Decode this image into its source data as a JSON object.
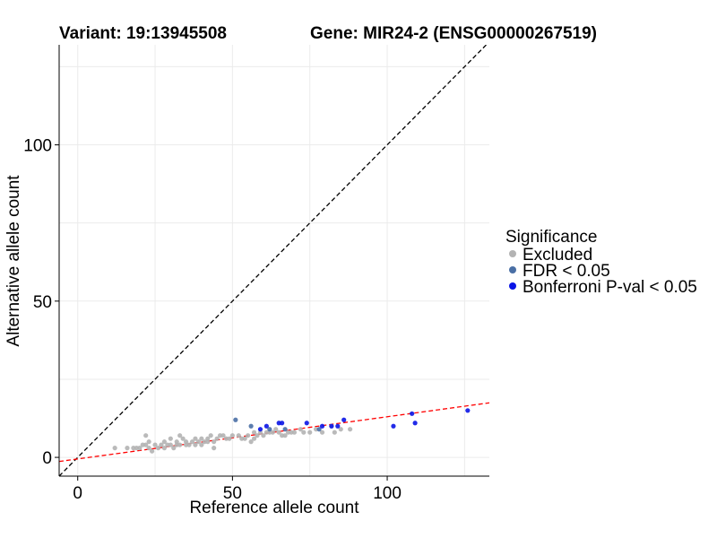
{
  "chart_data": {
    "type": "scatter",
    "title_left": "Variant: 19:13945508",
    "title_right": "Gene: MIR24-2 (ENSG00000267519)",
    "xlabel": "Reference allele count",
    "ylabel": "Alternative allele count",
    "xlim": [
      -6,
      133
    ],
    "ylim": [
      -6,
      132
    ],
    "xticks": [
      0,
      50,
      100
    ],
    "yticks": [
      0,
      50,
      100
    ],
    "grid": true,
    "legend": {
      "title": "Significance",
      "placement": "right",
      "entries": [
        {
          "label": "Excluded",
          "color": "#b3b3b3"
        },
        {
          "label": "FDR < 0.05",
          "color": "#4a6fa5"
        },
        {
          "label": "Bonferroni P-val < 0.05",
          "color": "#0a14e6"
        }
      ]
    },
    "reference_lines": [
      {
        "name": "y = x",
        "slope": 1,
        "intercept": 0,
        "color": "#000000",
        "style": "dashed"
      },
      {
        "name": "fit",
        "slope": 0.135,
        "intercept": -0.5,
        "color": "#ff0000",
        "style": "dashed"
      }
    ],
    "series": [
      {
        "name": "Excluded",
        "color": "#b3b3b3",
        "points": [
          [
            12,
            3
          ],
          [
            16,
            3
          ],
          [
            18,
            3
          ],
          [
            19,
            3
          ],
          [
            20,
            3
          ],
          [
            21,
            4
          ],
          [
            22,
            7
          ],
          [
            22,
            4
          ],
          [
            23,
            3
          ],
          [
            23,
            5
          ],
          [
            24,
            2
          ],
          [
            25,
            4
          ],
          [
            26,
            3
          ],
          [
            27,
            4
          ],
          [
            28,
            5
          ],
          [
            28,
            3
          ],
          [
            29,
            4
          ],
          [
            30,
            4
          ],
          [
            30,
            6
          ],
          [
            31,
            3
          ],
          [
            32,
            5
          ],
          [
            32,
            4
          ],
          [
            33,
            7
          ],
          [
            33,
            4
          ],
          [
            34,
            6
          ],
          [
            35,
            5
          ],
          [
            35,
            4
          ],
          [
            36,
            4
          ],
          [
            37,
            5
          ],
          [
            38,
            6
          ],
          [
            38,
            4
          ],
          [
            39,
            5
          ],
          [
            40,
            6
          ],
          [
            40,
            4
          ],
          [
            41,
            5
          ],
          [
            42,
            6
          ],
          [
            42,
            5
          ],
          [
            43,
            7
          ],
          [
            44,
            5
          ],
          [
            44,
            3
          ],
          [
            45,
            6
          ],
          [
            46,
            7
          ],
          [
            47,
            7
          ],
          [
            48,
            6
          ],
          [
            49,
            6
          ],
          [
            50,
            7
          ],
          [
            52,
            7
          ],
          [
            53,
            6
          ],
          [
            54,
            6
          ],
          [
            55,
            7
          ],
          [
            56,
            5
          ],
          [
            57,
            6
          ],
          [
            57,
            8
          ],
          [
            58,
            7
          ],
          [
            59,
            8
          ],
          [
            60,
            7
          ],
          [
            61,
            8
          ],
          [
            62,
            8
          ],
          [
            63,
            8
          ],
          [
            64,
            9
          ],
          [
            65,
            8
          ],
          [
            66,
            7
          ],
          [
            67,
            7
          ],
          [
            68,
            8
          ],
          [
            69,
            8
          ],
          [
            70,
            8
          ],
          [
            72,
            9
          ],
          [
            73,
            8
          ],
          [
            75,
            8
          ],
          [
            77,
            9
          ],
          [
            79,
            8
          ],
          [
            82,
            10
          ],
          [
            83,
            8
          ],
          [
            85,
            9
          ],
          [
            88,
            9
          ]
        ]
      },
      {
        "name": "FDR < 0.05",
        "color": "#4a6fa5",
        "points": [
          [
            51,
            12
          ],
          [
            56,
            10
          ],
          [
            62,
            9
          ],
          [
            67,
            9
          ],
          [
            78,
            9
          ]
        ]
      },
      {
        "name": "Bonferroni P-val < 0.05",
        "color": "#0a14e6",
        "points": [
          [
            59,
            9
          ],
          [
            61,
            10
          ],
          [
            65,
            11
          ],
          [
            66,
            11
          ],
          [
            74,
            11
          ],
          [
            79,
            10
          ],
          [
            82,
            10
          ],
          [
            84,
            10
          ],
          [
            86,
            12
          ],
          [
            102,
            10
          ],
          [
            108,
            14
          ],
          [
            109,
            11
          ],
          [
            126,
            15
          ]
        ]
      }
    ]
  }
}
